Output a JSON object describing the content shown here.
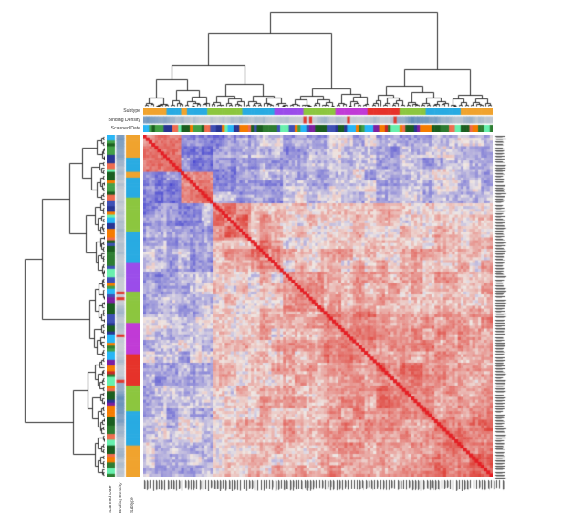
{
  "labels": {
    "top_tracks": [
      "Subtype",
      "Binding Density",
      "Scanned Date"
    ],
    "left_tracks_rotated": [
      "Scanned Date",
      "Binding Density",
      "Subtype"
    ]
  },
  "chart_data": {
    "type": "heatmap",
    "title": "",
    "description": "Hierarchically clustered sample-by-sample correlation heatmap with top and left dendrograms, three annotation tracks on each axis, and illegible micro-text sample labels on right and bottom edges",
    "n_samples": 120,
    "matrix": "symmetric pairwise correlation, diagonal = 1",
    "value_range": [
      -1,
      1
    ],
    "colormap": {
      "negative": "#3838CE",
      "zero": "#EFE8E4",
      "positive": "#DE3A32",
      "diagonal": "#E41E24"
    },
    "dendrograms": [
      "top",
      "left"
    ],
    "dendrogram_line_color": "#2b2b2b",
    "clusters": {
      "sizes": [
        13,
        11,
        13,
        11,
        14,
        18,
        20,
        20
      ],
      "affinity": [
        [
          0.55,
          -0.45,
          -0.4,
          -0.25,
          -0.25,
          -0.2,
          -0.25,
          -0.2
        ],
        [
          -0.45,
          0.6,
          -0.35,
          -0.3,
          -0.15,
          -0.15,
          -0.2,
          -0.15
        ],
        [
          -0.4,
          -0.35,
          0.5,
          0.25,
          0.1,
          0.15,
          0.1,
          0.15
        ],
        [
          -0.25,
          -0.3,
          0.25,
          0.5,
          0.15,
          0.2,
          0.2,
          0.2
        ],
        [
          -0.25,
          -0.15,
          0.1,
          0.15,
          0.45,
          0.25,
          0.25,
          0.25
        ],
        [
          -0.2,
          -0.15,
          0.15,
          0.2,
          0.25,
          0.5,
          0.35,
          0.35
        ],
        [
          -0.25,
          -0.2,
          0.1,
          0.2,
          0.25,
          0.35,
          0.5,
          0.4
        ],
        [
          -0.2,
          -0.15,
          0.15,
          0.2,
          0.25,
          0.35,
          0.4,
          0.55
        ]
      ]
    },
    "annotation_tracks": [
      {
        "name": "Subtype",
        "kind": "categorical",
        "palette": [
          "#29ABE2",
          "#E6332A",
          "#F0A32E",
          "#9B4DEA",
          "#C13BD6",
          "#8CC63F"
        ],
        "weights": [
          0.34,
          0.16,
          0.17,
          0.12,
          0.07,
          0.14
        ]
      },
      {
        "name": "Binding Density",
        "kind": "continuous",
        "palette_low": "#C9CDD4",
        "palette_high": "#4A7FB5",
        "outlier": "#E0392F",
        "outlier_prob": 0.035
      },
      {
        "name": "Scanned Date",
        "kind": "categorical",
        "palette": [
          "#2E7D32",
          "#1B5E20",
          "#43A047",
          "#F57C00",
          "#EF6C4F",
          "#3F51B5",
          "#283593",
          "#7B1FA2",
          "#69F0AE",
          "#29B6F6",
          "#C62828"
        ],
        "weights": [
          0.16,
          0.12,
          0.1,
          0.12,
          0.12,
          0.1,
          0.07,
          0.07,
          0.05,
          0.05,
          0.04
        ]
      }
    ],
    "sample_labels_legible": false,
    "label_text_color": "#3a3a3a",
    "seed": 1234
  }
}
